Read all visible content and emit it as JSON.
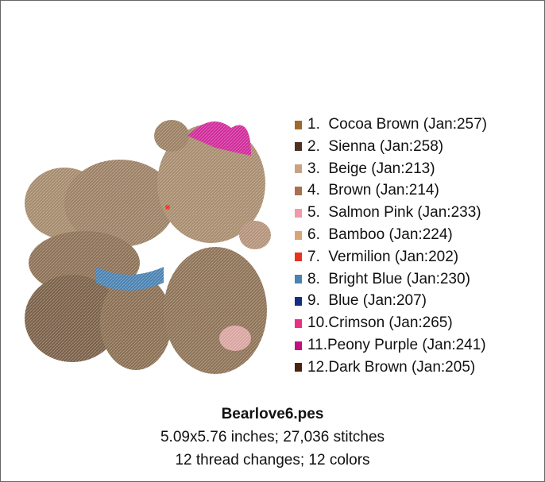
{
  "design": {
    "threads": [
      {
        "label": "1.  Cocoa Brown (Jan:257)",
        "color": "#a0682a"
      },
      {
        "label": "2.  Sienna (Jan:258)",
        "color": "#4d3222"
      },
      {
        "label": "3.  Beige (Jan:213)",
        "color": "#c9a283"
      },
      {
        "label": "4.  Brown (Jan:214)",
        "color": "#a9704f"
      },
      {
        "label": "5.  Salmon Pink (Jan:233)",
        "color": "#f29aab"
      },
      {
        "label": "6.  Bamboo (Jan:224)",
        "color": "#dba476"
      },
      {
        "label": "7.  Vermilion (Jan:202)",
        "color": "#e8321e"
      },
      {
        "label": "8.  Bright Blue (Jan:230)",
        "color": "#4a82b2"
      },
      {
        "label": "9.  Blue (Jan:207)",
        "color": "#122f83"
      },
      {
        "label": "10.Crimson (Jan:265)",
        "color": "#e83183"
      },
      {
        "label": "11.Peony Purple (Jan:241)",
        "color": "#c0127f"
      },
      {
        "label": "12.Dark Brown (Jan:205)",
        "color": "#4a2210"
      }
    ],
    "file_name": "Bearlove6.pes",
    "size_line": "5.09x5.76 inches; 27,036 stitches",
    "changes_line": "12 thread changes; 12 colors"
  }
}
